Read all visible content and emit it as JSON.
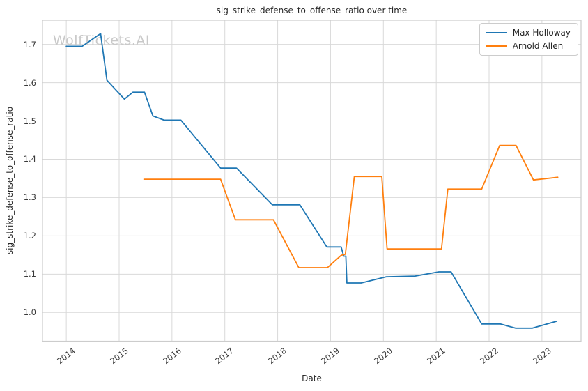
{
  "watermark": "WolfTickets.AI",
  "colors": {
    "background": "#ffffff",
    "grid": "#d9d9d9",
    "spine": "#cccccc",
    "tick_text": "#3a3a3a",
    "title_text": "#262626",
    "watermark_text": "#c9c9c9",
    "max_holloway": "#1f77b4",
    "arnold_allen": "#ff7f0e"
  },
  "chart_data": {
    "type": "line",
    "title": "sig_strike_defense_to_offense_ratio over time",
    "xlabel": "Date",
    "ylabel": "sig_strike_defense_to_offense_ratio",
    "grid": true,
    "legend_position": "top-right",
    "x_ticks": [
      2014,
      2015,
      2016,
      2017,
      2018,
      2019,
      2020,
      2021,
      2022,
      2023
    ],
    "y_ticks": [
      1.0,
      1.1,
      1.2,
      1.3,
      1.4,
      1.5,
      1.6,
      1.7
    ],
    "x_range": [
      2013.55,
      2023.74
    ],
    "y_range": [
      0.925,
      1.763
    ],
    "series": [
      {
        "name": "Max Holloway",
        "color": "#1f77b4",
        "points": [
          [
            2014.0,
            1.695
          ],
          [
            2014.3,
            1.695
          ],
          [
            2014.65,
            1.728
          ],
          [
            2014.77,
            1.606
          ],
          [
            2015.1,
            1.557
          ],
          [
            2015.26,
            1.575
          ],
          [
            2015.48,
            1.575
          ],
          [
            2015.64,
            1.513
          ],
          [
            2015.85,
            1.502
          ],
          [
            2016.17,
            1.502
          ],
          [
            2016.92,
            1.377
          ],
          [
            2017.22,
            1.377
          ],
          [
            2017.9,
            1.281
          ],
          [
            2018.42,
            1.281
          ],
          [
            2018.93,
            1.171
          ],
          [
            2019.2,
            1.171
          ],
          [
            2019.25,
            1.147
          ],
          [
            2019.29,
            1.147
          ],
          [
            2019.31,
            1.077
          ],
          [
            2019.58,
            1.077
          ],
          [
            2020.05,
            1.093
          ],
          [
            2020.6,
            1.095
          ],
          [
            2021.05,
            1.106
          ],
          [
            2021.28,
            1.106
          ],
          [
            2021.86,
            0.97
          ],
          [
            2022.21,
            0.97
          ],
          [
            2022.5,
            0.959
          ],
          [
            2022.82,
            0.959
          ],
          [
            2023.28,
            0.977
          ]
        ]
      },
      {
        "name": "Arnold Allen",
        "color": "#ff7f0e",
        "points": [
          [
            2015.47,
            1.348
          ],
          [
            2016.92,
            1.348
          ],
          [
            2017.2,
            1.242
          ],
          [
            2017.92,
            1.242
          ],
          [
            2018.4,
            1.117
          ],
          [
            2018.94,
            1.117
          ],
          [
            2019.2,
            1.149
          ],
          [
            2019.28,
            1.152
          ],
          [
            2019.45,
            1.355
          ],
          [
            2019.97,
            1.355
          ],
          [
            2020.07,
            1.166
          ],
          [
            2021.1,
            1.166
          ],
          [
            2021.22,
            1.322
          ],
          [
            2021.86,
            1.322
          ],
          [
            2022.2,
            1.436
          ],
          [
            2022.51,
            1.436
          ],
          [
            2022.84,
            1.346
          ],
          [
            2023.3,
            1.353
          ]
        ]
      }
    ]
  }
}
